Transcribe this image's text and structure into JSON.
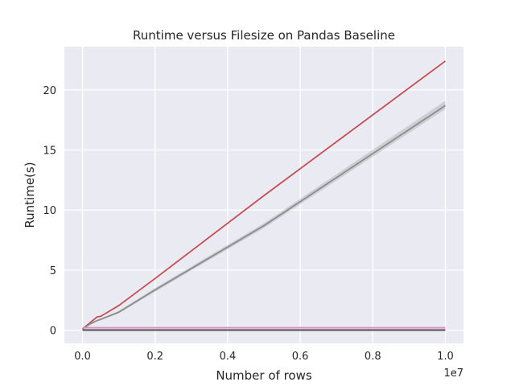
{
  "chart_data": {
    "type": "line",
    "title": "Runtime versus Filesize on Pandas Baseline",
    "xlabel": "Number of rows",
    "ylabel": "Runtime(s)",
    "x_offset_label": "1e7",
    "x_scale": 10000000,
    "xlim": [
      -500000,
      10500000
    ],
    "ylim": [
      -1.1,
      23.6
    ],
    "x_ticks": [
      0,
      2000000,
      4000000,
      6000000,
      8000000,
      10000000
    ],
    "x_tick_labels": [
      "0.0",
      "0.2",
      "0.4",
      "0.6",
      "0.8",
      "1.0"
    ],
    "y_ticks": [
      0,
      5,
      10,
      15,
      20
    ],
    "y_tick_labels": [
      "0",
      "5",
      "10",
      "15",
      "20"
    ],
    "grid": true,
    "background": "#eaeaf2",
    "series": [
      {
        "color": "#c44e52",
        "x": [
          0,
          100000,
          200000,
          300000,
          400000,
          500000,
          1000000,
          2000000,
          5000000,
          10000000
        ],
        "y": [
          0.1,
          0.35,
          0.6,
          0.85,
          1.1,
          1.15,
          2.05,
          4.3,
          11.2,
          22.4
        ]
      },
      {
        "color": "#8c8c8c",
        "band": true,
        "x": [
          0,
          100000,
          200000,
          300000,
          400000,
          500000,
          1000000,
          2000000,
          5000000,
          10000000
        ],
        "y": [
          0.1,
          0.3,
          0.5,
          0.65,
          0.8,
          0.9,
          1.5,
          3.35,
          8.7,
          18.7
        ],
        "y_low": [
          0.05,
          0.25,
          0.45,
          0.6,
          0.75,
          0.85,
          1.4,
          3.2,
          8.5,
          18.4
        ],
        "y_high": [
          0.15,
          0.35,
          0.55,
          0.7,
          0.85,
          0.95,
          1.6,
          3.5,
          8.9,
          19.1
        ]
      },
      {
        "color": "#da8bc3",
        "x": [
          0,
          10000000
        ],
        "y": [
          0.2,
          0.2
        ]
      },
      {
        "color": "#7a5c52",
        "x": [
          0,
          10000000
        ],
        "y": [
          0.0,
          0.0
        ]
      },
      {
        "color": "#555555",
        "x": [
          0,
          10000000
        ],
        "y": [
          0.02,
          0.02
        ]
      }
    ]
  }
}
